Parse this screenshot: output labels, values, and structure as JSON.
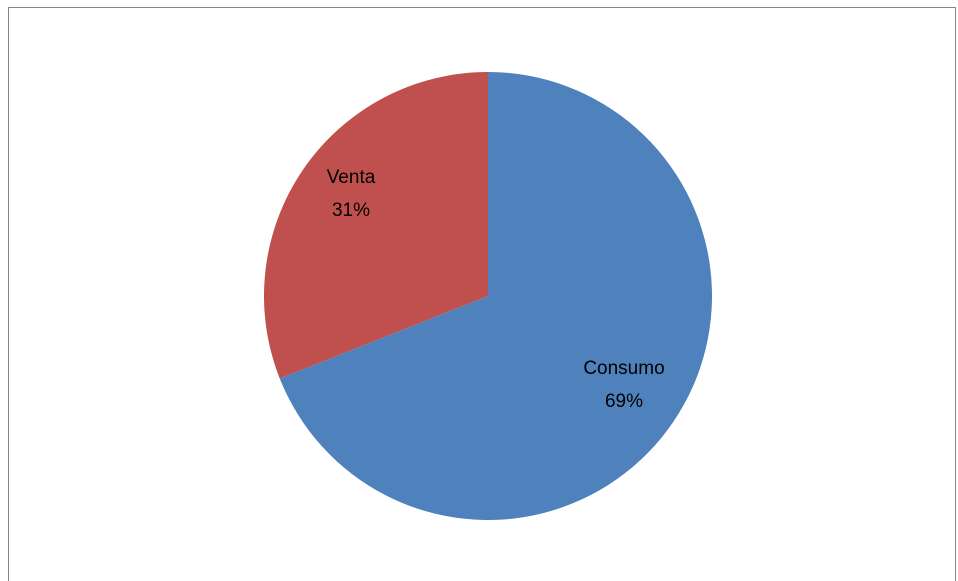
{
  "chart_data": {
    "type": "pie",
    "title": "",
    "legend": "none",
    "categories": [
      "Consumo",
      "Venta"
    ],
    "values": [
      69,
      31
    ],
    "percent_labels": [
      "69%",
      "31%"
    ],
    "colors": [
      "#4F81BD",
      "#C0504D"
    ],
    "border_color": "#868686"
  }
}
